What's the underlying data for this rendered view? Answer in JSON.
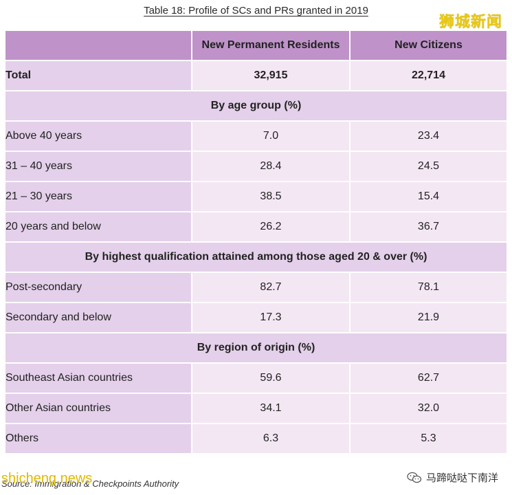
{
  "caption": "Table 18: Profile of SCs and PRs granted in 2019",
  "watermark_top": "狮城新闻",
  "watermark_bottom_left": "shicheng.news",
  "watermark_bottom_right": "马蹄哒哒下南洋",
  "source": "Source: Immigration & Checkpoints Authority",
  "header": {
    "col1": "",
    "col2": "New Permanent Residents",
    "col3": "New Citizens"
  },
  "total": {
    "label": "Total",
    "pr": "32,915",
    "sc": "22,714"
  },
  "sections": {
    "age": "By age group (%)",
    "qualification": "By highest qualification attained among those aged 20 & over (%)",
    "region": "By region of origin (%)"
  },
  "age_rows": [
    {
      "label": "Above 40 years",
      "pr": "7.0",
      "sc": "23.4"
    },
    {
      "label": "31 – 40 years",
      "pr": "28.4",
      "sc": "24.5"
    },
    {
      "label": "21 – 30 years",
      "pr": "38.5",
      "sc": "15.4"
    },
    {
      "label": "20 years and below",
      "pr": "26.2",
      "sc": "36.7"
    }
  ],
  "qualification_rows": [
    {
      "label": "Post-secondary",
      "pr": "82.7",
      "sc": "78.1"
    },
    {
      "label": "Secondary and below",
      "pr": "17.3",
      "sc": "21.9"
    }
  ],
  "region_rows": [
    {
      "label": "Southeast Asian countries",
      "pr": "59.6",
      "sc": "62.7"
    },
    {
      "label": "Other Asian countries",
      "pr": "34.1",
      "sc": "32.0"
    },
    {
      "label": "Others",
      "pr": "6.3",
      "sc": "5.3"
    }
  ],
  "colors": {
    "header_bg": "#bf93c9",
    "label_bg": "#e4d0ea",
    "value_bg": "#f4e7f4",
    "watermark": "#e8c814"
  }
}
